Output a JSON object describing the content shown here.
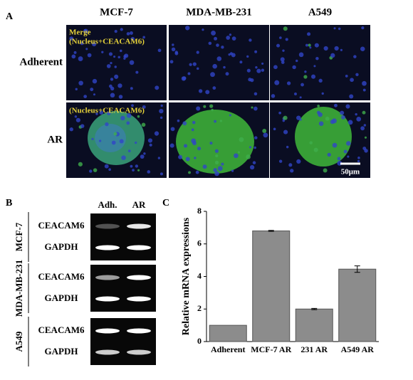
{
  "panel_a": {
    "label": "A",
    "columns": [
      "MCF-7",
      "MDA-MB-231",
      "A549"
    ],
    "rows": [
      "Adherent",
      "AR"
    ],
    "overlay_1": "Merge",
    "overlay_2": "(Nucleus+CEACAM6)",
    "overlay_3": "(Nucleus+CEACAM6)",
    "scale_bar": "50μm"
  },
  "panel_b": {
    "label": "B",
    "columns": [
      "Adh.",
      "AR"
    ],
    "groups": [
      {
        "name": "MCF-7",
        "bands": [
          "CEACAM6",
          "GAPDH"
        ]
      },
      {
        "name": "MDA-MB-231",
        "bands": [
          "CEACAM6",
          "GAPDH"
        ]
      },
      {
        "name": "A549",
        "bands": [
          "CEACAM6",
          "GAPDH"
        ]
      }
    ]
  },
  "panel_c_label": "C",
  "chart_data": {
    "type": "bar",
    "y_label": "Relative mRNA expressions",
    "categories": [
      "Adherent",
      "MCF-7 AR",
      "231 AR",
      "A549 AR"
    ],
    "values": [
      1,
      6.8,
      2.0,
      4.45
    ],
    "errors": [
      null,
      0.03,
      0.04,
      0.2
    ],
    "color": "#8c8c8c",
    "ylim": [
      0,
      8
    ],
    "yticks": [
      0,
      2,
      4,
      6,
      8
    ]
  }
}
